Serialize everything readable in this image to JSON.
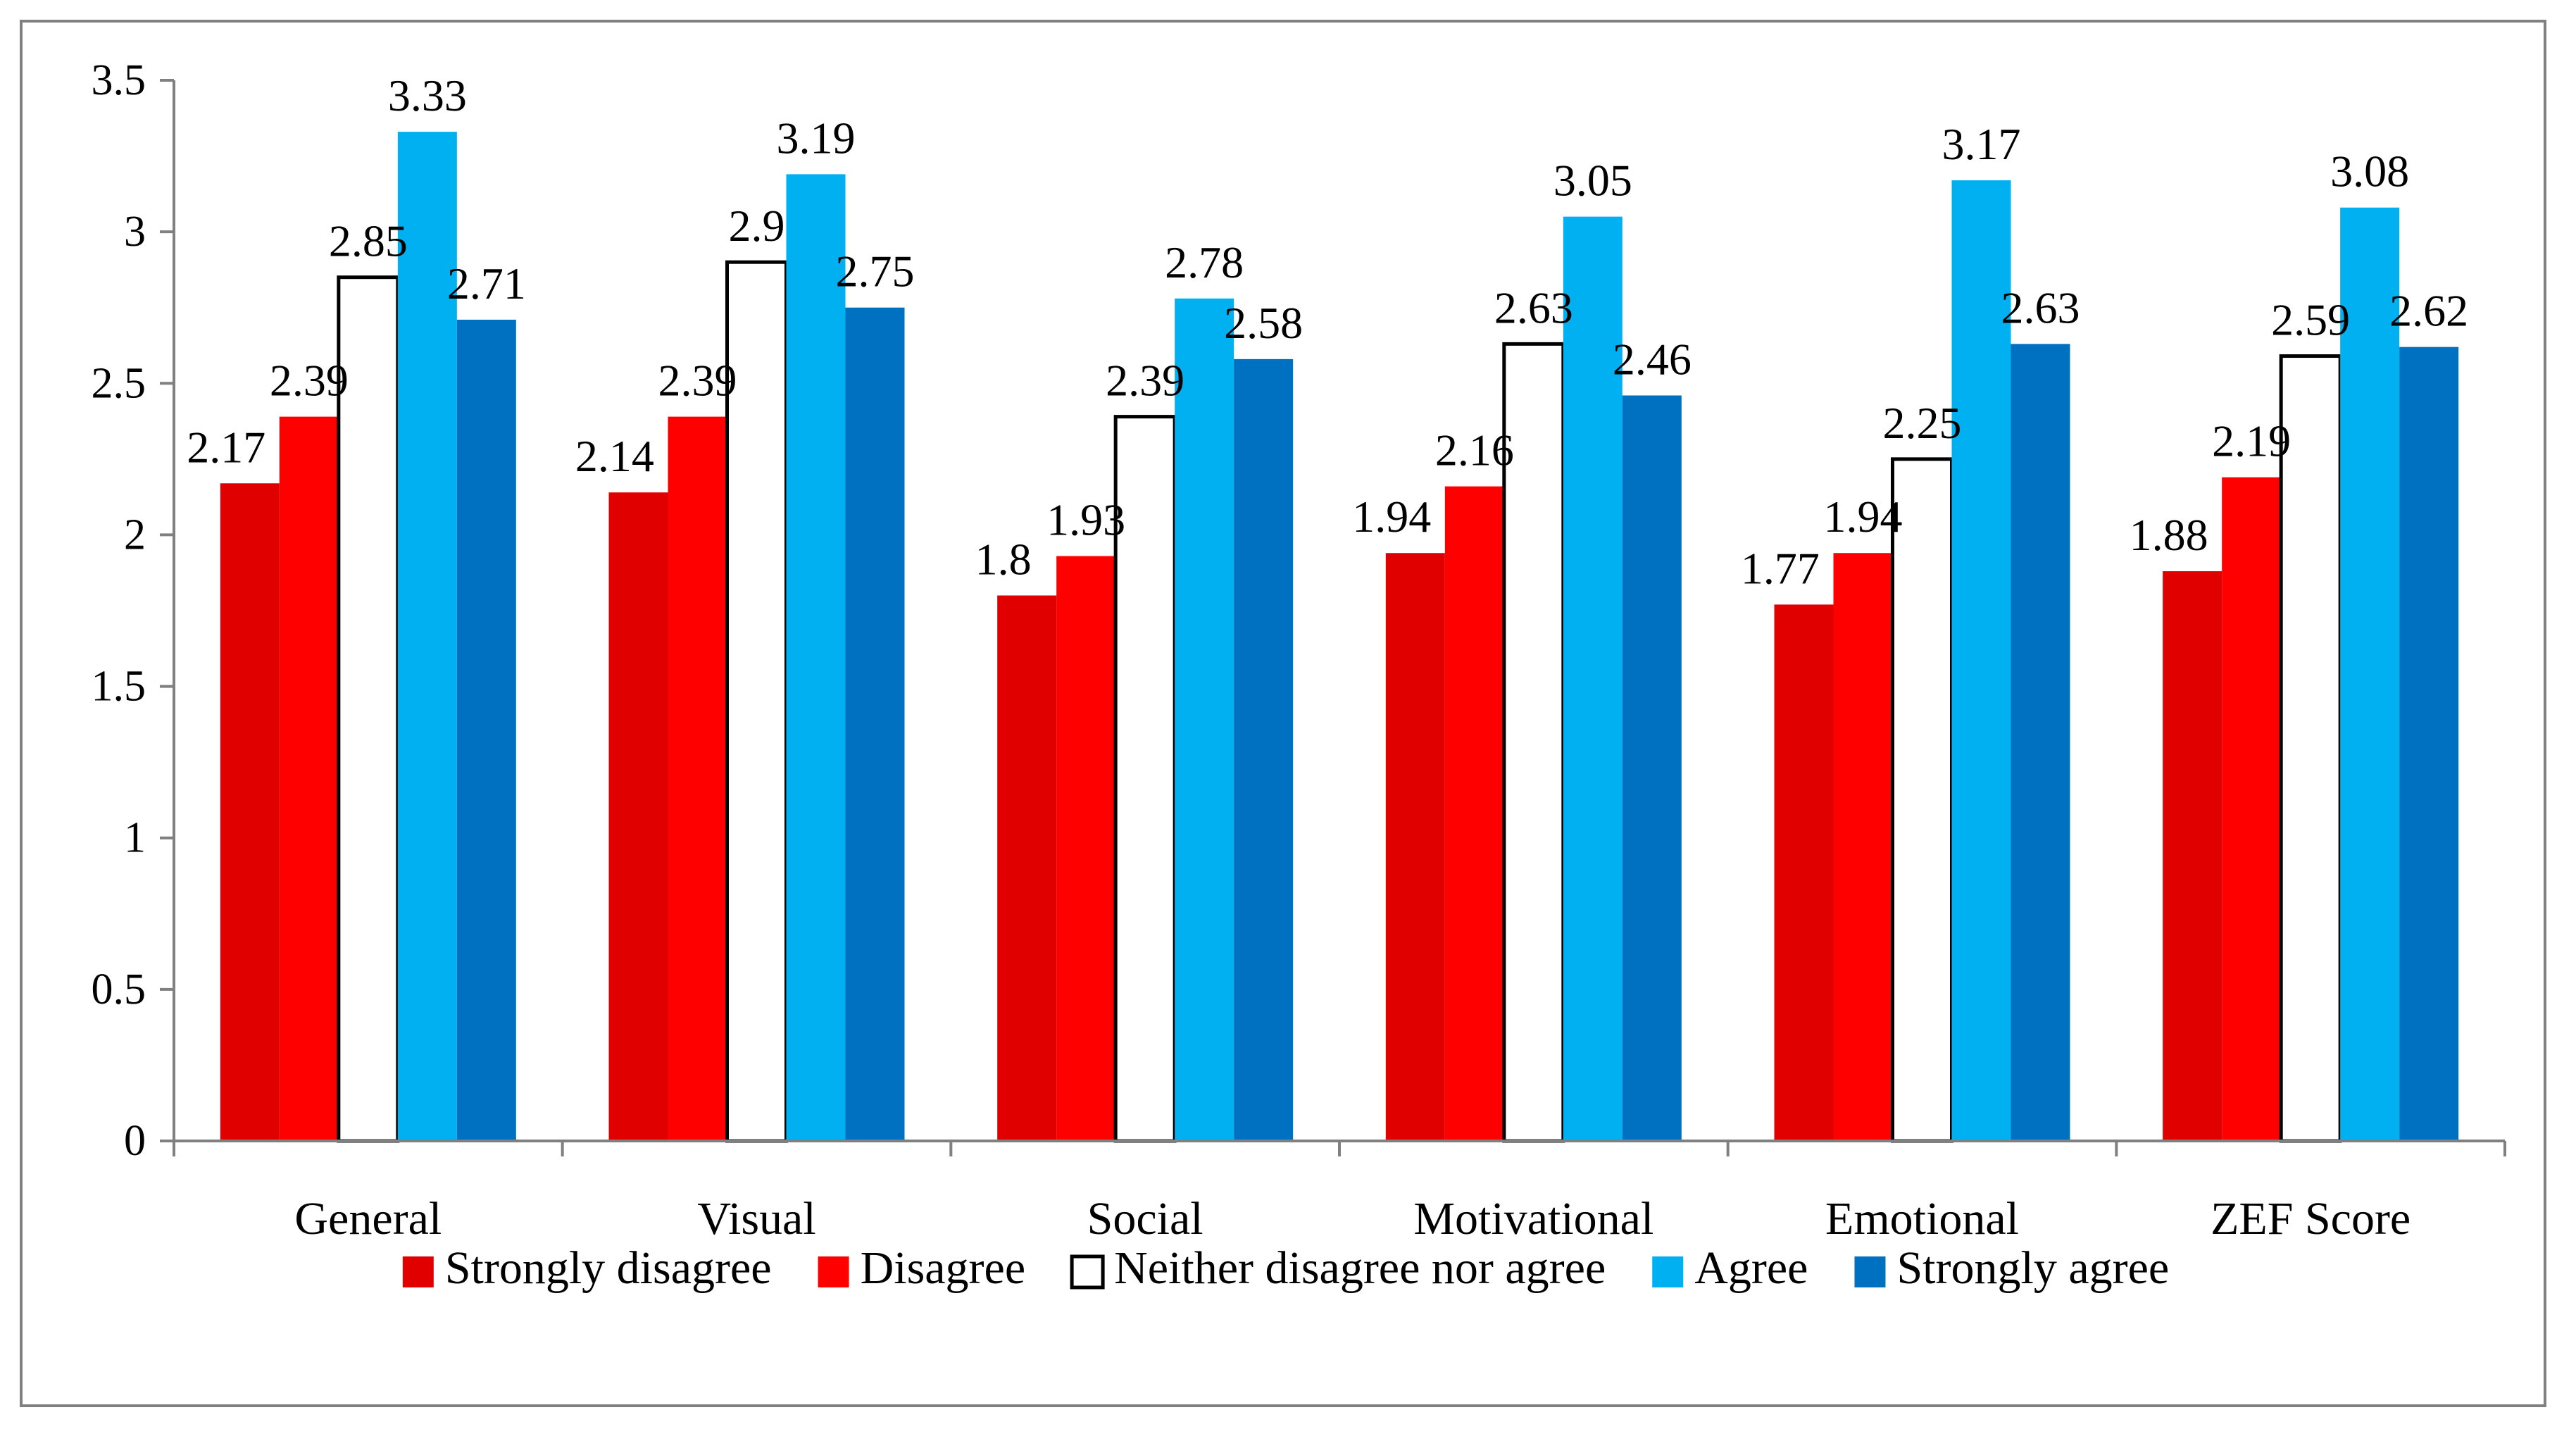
{
  "chart_data": {
    "type": "bar",
    "categories": [
      "General",
      "Visual",
      "Social",
      "Motivational",
      "Emotional",
      "ZEF Score"
    ],
    "series": [
      {
        "name": "Strongly disagree",
        "color": "#e00000",
        "values": [
          2.17,
          2.14,
          1.8,
          1.94,
          1.77,
          1.88
        ],
        "labels": [
          "2.17",
          "2.14",
          "1.8",
          "1.94",
          "1.77",
          "1.88"
        ]
      },
      {
        "name": "Disagree",
        "color": "#ff0000",
        "values": [
          2.39,
          2.39,
          1.93,
          2.16,
          1.94,
          2.19
        ],
        "labels": [
          "2.39",
          "2.39",
          "1.93",
          "2.16",
          "1.94",
          "2.19"
        ]
      },
      {
        "name": "Neither disagree nor agree",
        "color": "#ffffff",
        "values": [
          2.85,
          2.9,
          2.39,
          2.63,
          2.25,
          2.59
        ],
        "labels": [
          "2.85",
          "2.9",
          "2.39",
          "2.63",
          "2.25",
          "2.59"
        ]
      },
      {
        "name": "Agree",
        "color": "#00b0f0",
        "values": [
          3.33,
          3.19,
          2.78,
          3.05,
          3.17,
          3.08
        ],
        "labels": [
          "3.33",
          "3.19",
          "2.78",
          "3.05",
          "3.17",
          "3.08"
        ]
      },
      {
        "name": "Strongly agree",
        "color": "#0070c0",
        "values": [
          2.71,
          2.75,
          2.58,
          2.46,
          2.63,
          2.62
        ],
        "labels": [
          "2.71",
          "2.75",
          "2.58",
          "2.46",
          "2.63",
          "2.62"
        ]
      }
    ],
    "yticks": [
      "0",
      "0.5",
      "1",
      "1.5",
      "2",
      "2.5",
      "3",
      "3.5"
    ],
    "ylim": [
      0,
      3.5
    ],
    "title": "",
    "xlabel": "",
    "ylabel": "",
    "grid": false,
    "legend_position": "bottom",
    "outline_color": "#000000"
  }
}
